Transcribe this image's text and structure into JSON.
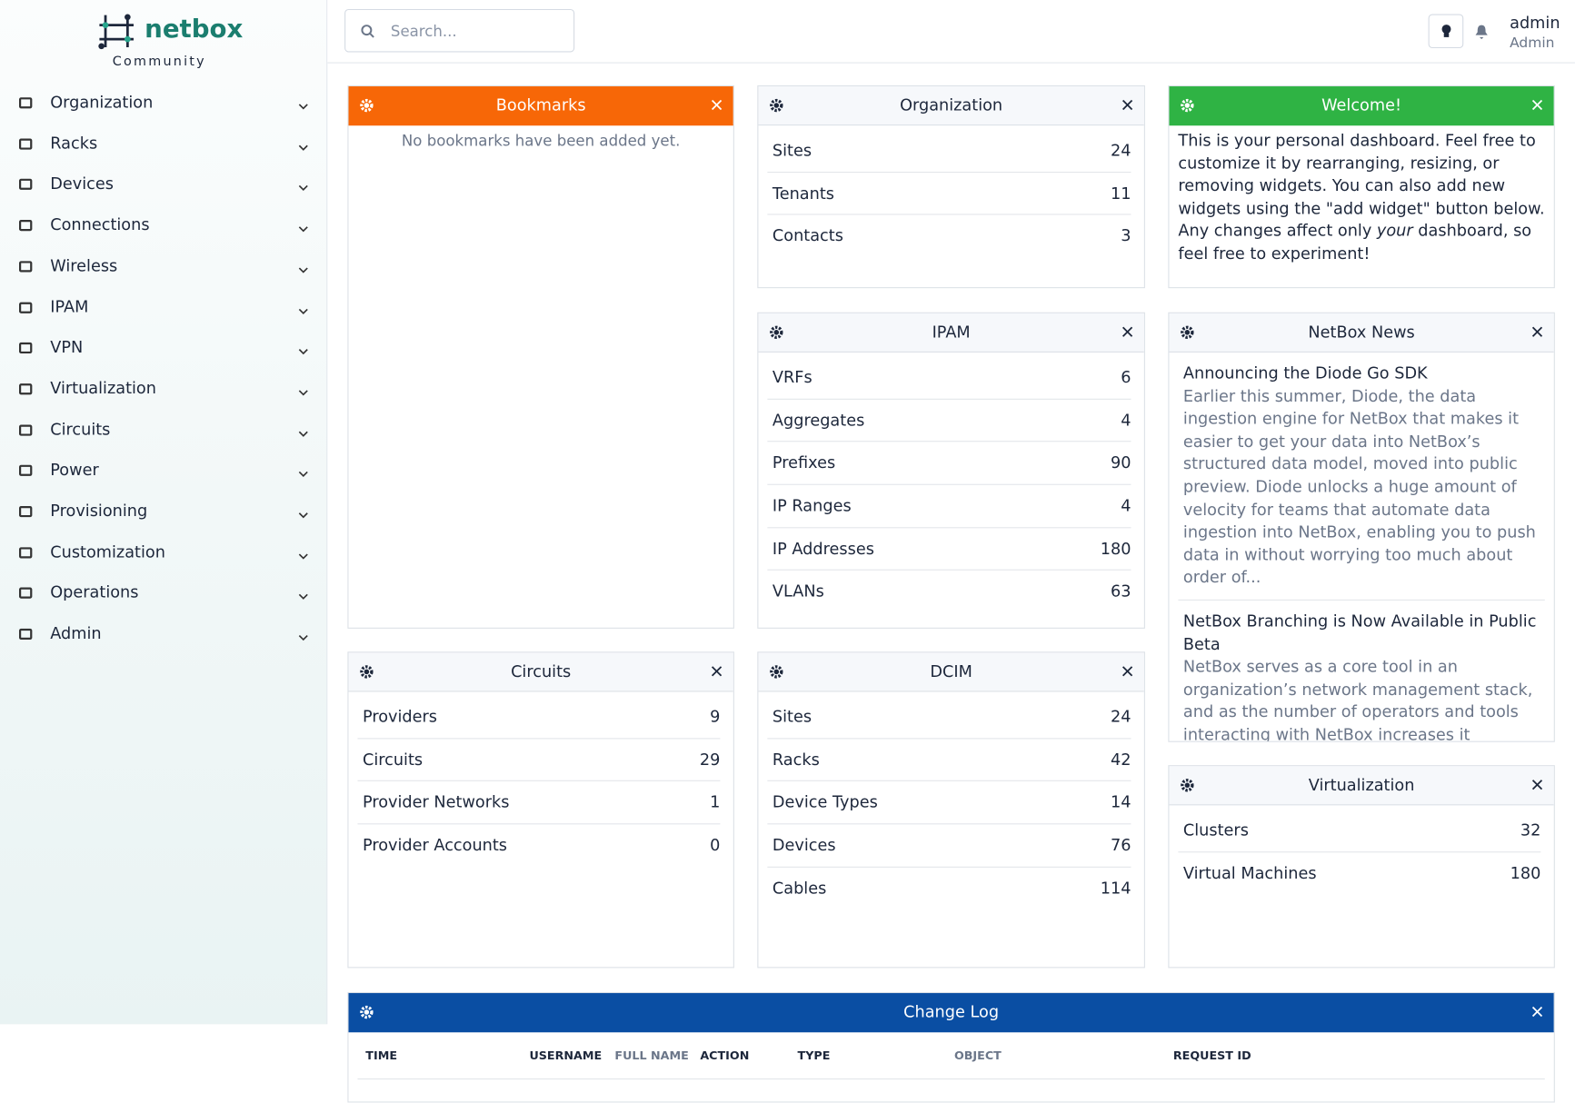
{
  "sidebar": {
    "logo": "netbox",
    "subtitle": "Community",
    "items": [
      "Organization",
      "Racks",
      "Devices",
      "Connections",
      "Wireless",
      "IPAM",
      "VPN",
      "Virtualization",
      "Circuits",
      "Power",
      "Provisioning",
      "Customization",
      "Operations",
      "Admin"
    ]
  },
  "header": {
    "search_placeholder": "Search...",
    "user": "admin",
    "role": "Admin"
  },
  "widgets": [
    {
      "title": "Bookmarks",
      "empty": "No bookmarks have been added yet."
    },
    {
      "title": "Organization",
      "rows": [
        {
          "label": "Sites",
          "value": 24
        },
        {
          "label": "Tenants",
          "value": 11
        },
        {
          "label": "Contacts",
          "value": 3
        }
      ]
    },
    {
      "title": "Welcome!",
      "text": [
        "This is your personal dashboard. Feel free to customize it by rearranging, resizing, or removing widgets. You can also add new widgets using the \"add widget\" button below. Any changes affect only ",
        "your",
        " dashboard, so feel free to experiment!"
      ]
    },
    {
      "title": "IPAM",
      "rows": [
        {
          "label": "VRFs",
          "value": 6
        },
        {
          "label": "Aggregates",
          "value": 4
        },
        {
          "label": "Prefixes",
          "value": 90
        },
        {
          "label": "IP Ranges",
          "value": 4
        },
        {
          "label": "IP Addresses",
          "value": 180
        },
        {
          "label": "VLANs",
          "value": 63
        }
      ]
    },
    {
      "title": "NetBox News",
      "items": [
        {
          "title": "Announcing the Diode Go SDK",
          "body": "Earlier this summer, Diode, the data ingestion engine for NetBox that makes it easier to get your data into NetBox’s structured data model, moved into public preview. Diode unlocks a huge amount of velocity for teams that automate data ingestion into NetBox, enabling you to push data in without worrying too much about order of..."
        },
        {
          "title": "NetBox Branching is Now Available in Public Beta",
          "body": "NetBox serves as a core tool in an organization’s network management stack, and as the number of operators and tools interacting with NetBox increases it becomes critical to be able to control the flow of the data"
        }
      ]
    },
    {
      "title": "Circuits",
      "rows": [
        {
          "label": "Providers",
          "value": 9
        },
        {
          "label": "Circuits",
          "value": 29
        },
        {
          "label": "Provider Networks",
          "value": 1
        },
        {
          "label": "Provider Accounts",
          "value": 0
        }
      ]
    },
    {
      "title": "DCIM",
      "rows": [
        {
          "label": "Sites",
          "value": 24
        },
        {
          "label": "Racks",
          "value": 42
        },
        {
          "label": "Device Types",
          "value": 14
        },
        {
          "label": "Devices",
          "value": 76
        },
        {
          "label": "Cables",
          "value": 114
        }
      ]
    },
    {
      "title": "Virtualization",
      "rows": [
        {
          "label": "Clusters",
          "value": 32
        },
        {
          "label": "Virtual Machines",
          "value": 180
        }
      ]
    },
    {
      "title": "Change Log",
      "columns": [
        "TIME",
        "USERNAME",
        "FULL NAME",
        "ACTION",
        "TYPE",
        "OBJECT",
        "REQUEST ID"
      ]
    }
  ]
}
